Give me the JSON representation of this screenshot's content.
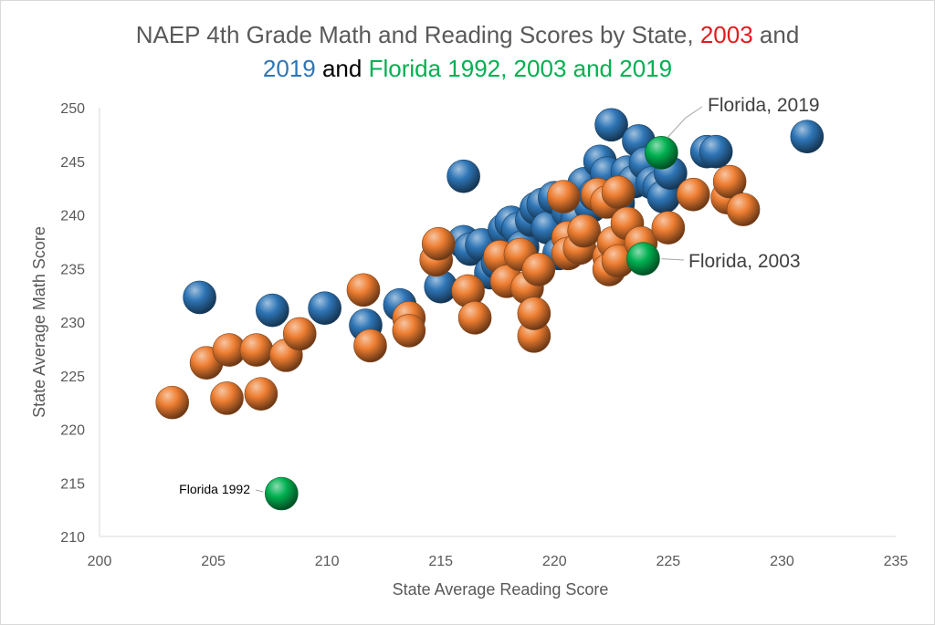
{
  "chart_data": {
    "type": "scatter",
    "title_parts": [
      {
        "text": "NAEP 4th Grade Math and Reading Scores by State, ",
        "color": "#595959"
      },
      {
        "text": "2003",
        "color": "#e41a1c"
      },
      {
        "text": " and",
        "color": "#595959"
      },
      {
        "text": "2019",
        "color": "#2e75b6"
      },
      {
        "text": " and ",
        "color": "#000000"
      },
      {
        "text": "Florida 1992, 2003 and 2019",
        "color": "#00b050"
      }
    ],
    "xlabel": "State Average Reading Score",
    "ylabel": "State Average Math Score",
    "xlim": [
      200,
      235
    ],
    "ylim": [
      210,
      250
    ],
    "x_ticks": [
      "200",
      "205",
      "210",
      "215",
      "220",
      "225",
      "230",
      "235"
    ],
    "y_ticks": [
      "210",
      "215",
      "220",
      "225",
      "230",
      "235",
      "240",
      "245",
      "250"
    ],
    "grid": false,
    "series": [
      {
        "color": "#2e75b6",
        "points": [
          [
            204.4,
            232.3
          ],
          [
            207.6,
            231.1
          ],
          [
            209.9,
            231.3
          ],
          [
            211.7,
            229.7
          ],
          [
            213.2,
            231.6
          ],
          [
            215.0,
            233.3
          ],
          [
            216.0,
            237.5
          ],
          [
            216.3,
            236.8
          ],
          [
            216.8,
            237.2
          ],
          [
            216.0,
            243.6
          ],
          [
            217.2,
            234.6
          ],
          [
            217.5,
            235.5
          ],
          [
            217.8,
            238.6
          ],
          [
            218.1,
            239.3
          ],
          [
            218.4,
            238.7
          ],
          [
            218.6,
            237.0
          ],
          [
            219.0,
            239.5
          ],
          [
            219.2,
            240.6
          ],
          [
            219.5,
            241.0
          ],
          [
            219.7,
            238.8
          ],
          [
            220.0,
            241.6
          ],
          [
            220.2,
            236.4
          ],
          [
            220.6,
            240.3
          ],
          [
            221.0,
            239.7
          ],
          [
            221.3,
            242.9
          ],
          [
            221.6,
            240.8
          ],
          [
            221.8,
            241.9
          ],
          [
            222.0,
            245.0
          ],
          [
            222.3,
            243.9
          ],
          [
            222.5,
            248.4
          ],
          [
            222.8,
            241.1
          ],
          [
            223.2,
            244.0
          ],
          [
            223.5,
            243.1
          ],
          [
            223.7,
            246.9
          ],
          [
            224.0,
            244.8
          ],
          [
            224.3,
            243.0
          ],
          [
            224.6,
            242.6
          ],
          [
            224.8,
            241.7
          ],
          [
            225.1,
            243.9
          ],
          [
            226.7,
            245.9
          ],
          [
            227.1,
            245.9
          ],
          [
            231.1,
            247.3
          ]
        ]
      },
      {
        "color": "#ed7d31",
        "points": [
          [
            203.2,
            222.5
          ],
          [
            204.7,
            226.2
          ],
          [
            205.6,
            222.9
          ],
          [
            205.7,
            227.4
          ],
          [
            206.9,
            227.4
          ],
          [
            207.1,
            223.3
          ],
          [
            208.2,
            226.9
          ],
          [
            208.8,
            228.9
          ],
          [
            211.6,
            233.0
          ],
          [
            211.9,
            227.8
          ],
          [
            213.6,
            230.4
          ],
          [
            213.6,
            229.2
          ],
          [
            214.8,
            235.8
          ],
          [
            214.9,
            237.3
          ],
          [
            216.2,
            232.9
          ],
          [
            216.5,
            230.4
          ],
          [
            217.6,
            236.1
          ],
          [
            217.9,
            233.8
          ],
          [
            218.5,
            236.3
          ],
          [
            218.8,
            233.2
          ],
          [
            219.1,
            228.7
          ],
          [
            219.1,
            230.8
          ],
          [
            219.3,
            234.9
          ],
          [
            220.4,
            241.7
          ],
          [
            220.6,
            237.9
          ],
          [
            220.6,
            236.4
          ],
          [
            221.1,
            236.9
          ],
          [
            221.3,
            238.5
          ],
          [
            221.9,
            241.9
          ],
          [
            222.3,
            241.2
          ],
          [
            222.4,
            236.1
          ],
          [
            222.4,
            234.9
          ],
          [
            222.6,
            237.4
          ],
          [
            222.8,
            235.7
          ],
          [
            222.8,
            242.1
          ],
          [
            223.2,
            239.2
          ],
          [
            223.8,
            237.4
          ],
          [
            225.0,
            238.8
          ],
          [
            226.1,
            241.9
          ],
          [
            227.6,
            241.6
          ],
          [
            227.7,
            243.1
          ],
          [
            228.3,
            240.5
          ]
        ]
      },
      {
        "color": "#00b050",
        "points": [
          [
            208.0,
            214.0
          ],
          [
            223.9,
            235.9
          ],
          [
            224.7,
            245.8
          ]
        ]
      }
    ],
    "annotations": [
      {
        "label": "Florida, 2019",
        "x": 224.7,
        "y": 245.8
      },
      {
        "label": "Florida, 2003",
        "x": 223.9,
        "y": 235.9
      },
      {
        "label": "Florida 1992",
        "x": 208.0,
        "y": 214.0
      }
    ]
  }
}
